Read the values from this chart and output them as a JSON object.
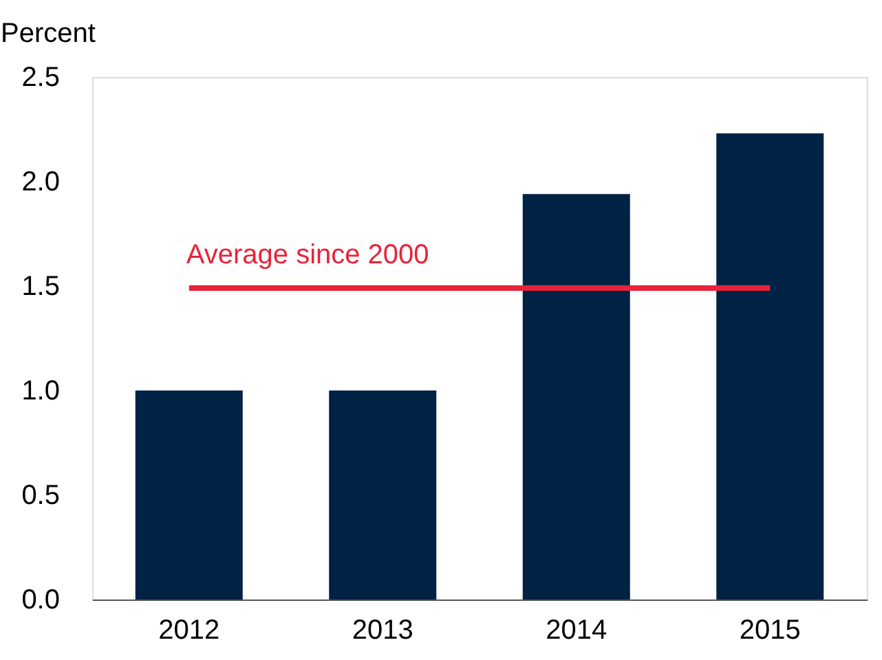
{
  "chart_data": {
    "type": "bar",
    "ylabel": "Percent",
    "categories": [
      "2012",
      "2013",
      "2014",
      "2015"
    ],
    "values": [
      1.0,
      1.0,
      1.94,
      2.23
    ],
    "color": "#002244",
    "ylim": [
      0,
      2.5
    ],
    "yticks": [
      {
        "value": 0,
        "label": "0.0"
      },
      0.5,
      {
        "value": 1,
        "label": "1.0"
      },
      1.5,
      {
        "value": 2,
        "label": "2.0"
      },
      2.5
    ],
    "grid": false,
    "ref_lines": [
      {
        "axis": "y",
        "value": 1.49,
        "label": "Average since 2000",
        "color": "#e8233a"
      }
    ]
  }
}
